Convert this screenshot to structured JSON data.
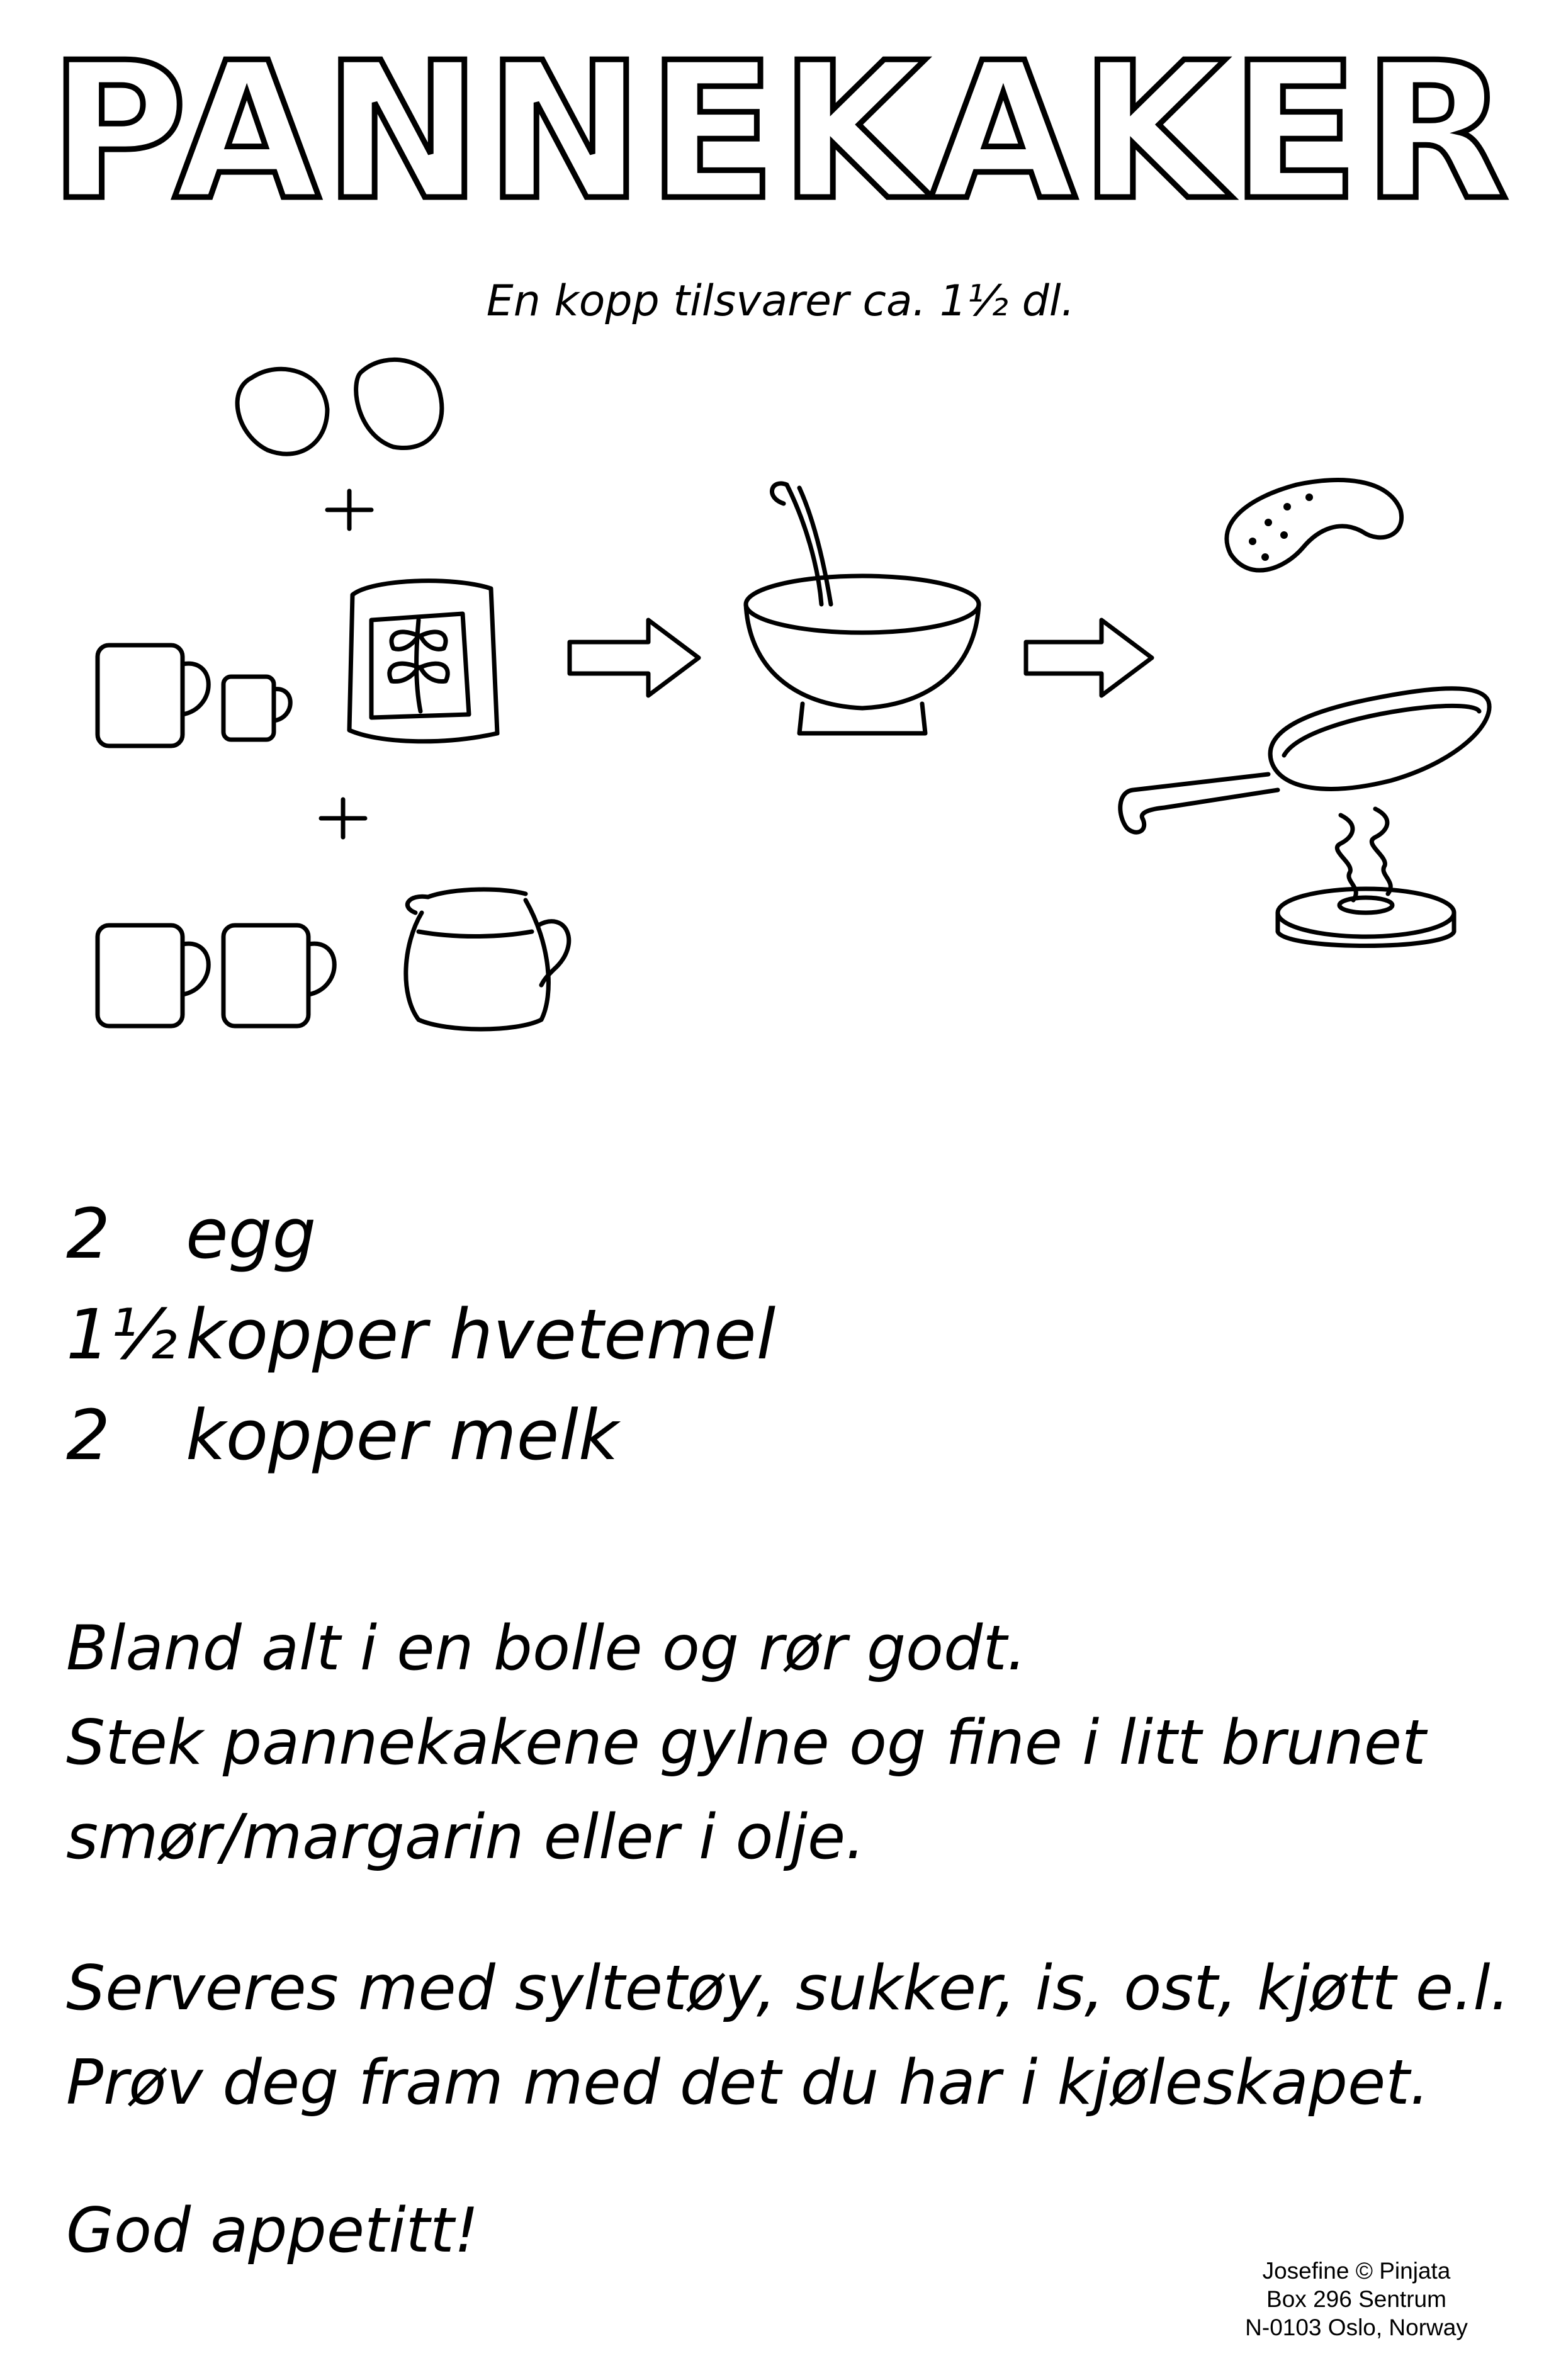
{
  "title": "PANNEKAKER",
  "subtitle": "En kopp tilsvarer ca. 1½ dl.",
  "illustration": {
    "plus_sign": "+",
    "icons": [
      "egg-icon",
      "cup-icon",
      "flour-bag-icon",
      "pitcher-icon",
      "arrow-right-icon",
      "bowl-icon",
      "pancake-icon",
      "frying-pan-icon",
      "stove-burner-icon"
    ]
  },
  "ingredients": [
    {
      "qty": "2",
      "item": "egg"
    },
    {
      "qty": "1½",
      "item": "kopper hvetemel"
    },
    {
      "qty": "2",
      "item": "kopper melk"
    }
  ],
  "instructions": [
    "Bland alt i en bolle og rør godt.",
    "Stek pannekakene gylne og fine i litt brunet",
    "smør/margarin eller i olje."
  ],
  "serving": [
    "Serveres med syltetøy, sukker, is, ost, kjøtt e.l.",
    "Prøv deg fram med det du har i kjøleskapet."
  ],
  "closing": "God appetitt!",
  "credit": [
    "Josefine © Pinjata",
    "Box 296 Sentrum",
    "N-0103 Oslo, Norway"
  ]
}
